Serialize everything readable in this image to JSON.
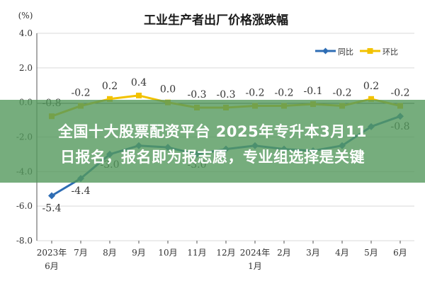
{
  "chart_data": {
    "type": "line",
    "title": "工业生产者出厂价格涨跌幅",
    "unit_label": "(%)",
    "categories": [
      [
        "2023年",
        "6月"
      ],
      [
        "7月"
      ],
      [
        "8月"
      ],
      [
        "9月"
      ],
      [
        "10月"
      ],
      [
        "11月"
      ],
      [
        "12月"
      ],
      [
        "2024年",
        "1月"
      ],
      [
        "2月"
      ],
      [
        "3月"
      ],
      [
        "4月"
      ],
      [
        "5月"
      ],
      [
        "6月"
      ]
    ],
    "y_ticks": [
      "4.0",
      "2.0",
      "0.0",
      "-2.0",
      "-4.0",
      "-6.0",
      "-8.0"
    ],
    "ylim": [
      -8,
      4
    ],
    "grid": true,
    "legend_position": "top-right",
    "series": [
      {
        "name": "同比",
        "color": "#2e6db4",
        "values": [
          -5.4,
          -4.4,
          -3.0,
          -2.5,
          -2.6,
          -3.0,
          -2.7,
          -2.5,
          -2.7,
          -2.8,
          -2.5,
          -1.4,
          -0.8
        ],
        "labels": [
          "-5.4",
          "-4.4",
          "-3.0",
          "",
          "",
          "-3.0",
          "",
          "",
          "",
          "",
          "",
          "",
          "-0.8"
        ]
      },
      {
        "name": "环比",
        "color": "#f2c200",
        "values": [
          -0.8,
          -0.2,
          0.2,
          0.4,
          0.0,
          -0.3,
          -0.3,
          -0.2,
          -0.2,
          -0.1,
          -0.2,
          0.2,
          -0.2
        ],
        "labels": [
          "-0.8",
          "-0.2",
          "0.2",
          "0.4",
          "0.0",
          "-0.3",
          "-0.3",
          "-0.2",
          "-0.2",
          "-0.1",
          "-0.2",
          "0.2",
          "-0.2"
        ]
      }
    ]
  },
  "banner": {
    "line1": "全国十大股票配资平台 2025年专升本3月11",
    "line2": "日报名，报名即为报志愿，专业组选择是关键"
  }
}
